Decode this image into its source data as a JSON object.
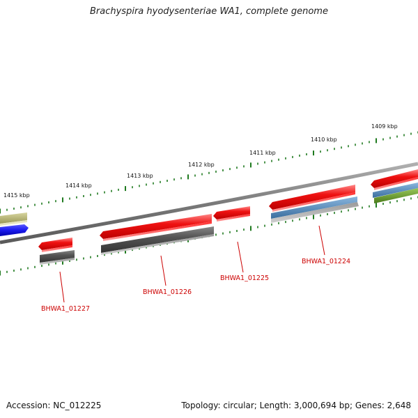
{
  "title": "Brachyspira hyodysenteriae WA1, complete genome",
  "footer": {
    "accession": "Accession: NC_012225",
    "summary": "Topology: circular; Length: 3,000,694 bp; Genes: 2,648"
  },
  "colors": {
    "backbone": "#8a8a8a",
    "tick": "#1f7a1f",
    "gene_red": "#ee1111",
    "gene_dark": "#5a5a5a",
    "gene_blue": "#1a1aee",
    "gene_khaki": "#b8b670",
    "gene_steel": "#4f86b8",
    "gene_olive": "#6a9a2a",
    "label_red": "#cc0000"
  },
  "ticks": {
    "upper": [
      "1415 kbp",
      "1414 kbp",
      "1413 kbp",
      "1412 kbp",
      "1411 kbp",
      "1410 kbp",
      "1409 kbp"
    ]
  },
  "gene_labels": [
    "BHWA1_01227",
    "BHWA1_01226",
    "BHWA1_01225",
    "BHWA1_01224"
  ]
}
